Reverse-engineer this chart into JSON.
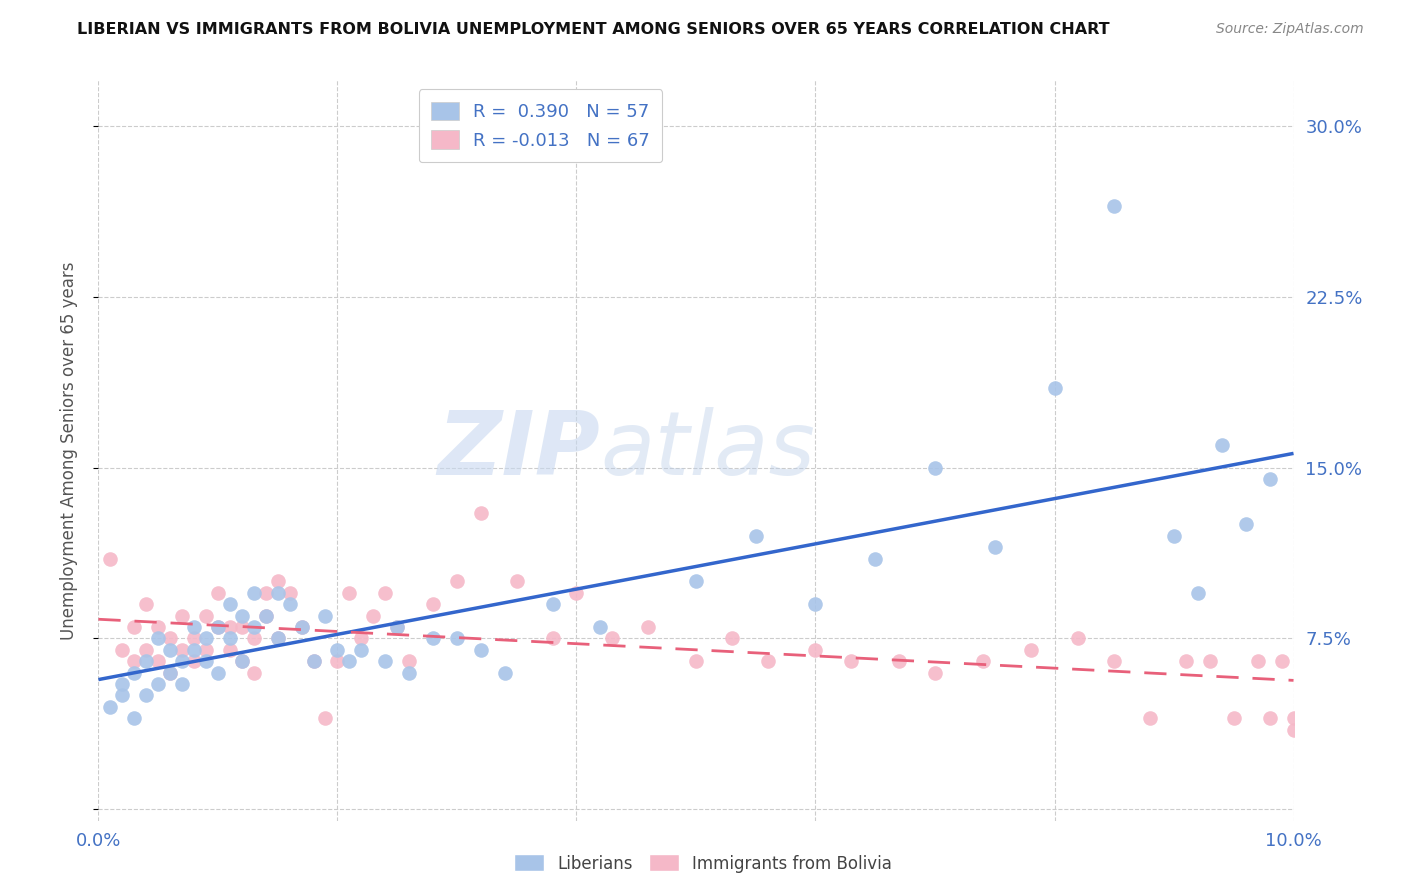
{
  "title": "LIBERIAN VS IMMIGRANTS FROM BOLIVIA UNEMPLOYMENT AMONG SENIORS OVER 65 YEARS CORRELATION CHART",
  "source": "Source: ZipAtlas.com",
  "ylabel": "Unemployment Among Seniors over 65 years",
  "xlim": [
    0.0,
    0.1
  ],
  "ylim": [
    -0.005,
    0.32
  ],
  "xticks": [
    0.0,
    0.02,
    0.04,
    0.06,
    0.08,
    0.1
  ],
  "xticklabels": [
    "0.0%",
    "",
    "",
    "",
    "",
    "10.0%"
  ],
  "yticks": [
    0.0,
    0.075,
    0.15,
    0.225,
    0.3
  ],
  "yticklabels": [
    "",
    "7.5%",
    "15.0%",
    "22.5%",
    "30.0%"
  ],
  "legend_r1": "R =  0.390",
  "legend_n1": "N = 57",
  "legend_r2": "R = -0.013",
  "legend_n2": "N = 67",
  "blue_color": "#a8c4e8",
  "pink_color": "#f5b8c8",
  "blue_line_color": "#3366cc",
  "pink_line_color": "#e8607a",
  "watermark_zip": "ZIP",
  "watermark_atlas": "atlas",
  "liberian_x": [
    0.001,
    0.002,
    0.002,
    0.003,
    0.003,
    0.004,
    0.004,
    0.005,
    0.005,
    0.006,
    0.006,
    0.007,
    0.007,
    0.008,
    0.008,
    0.009,
    0.009,
    0.01,
    0.01,
    0.011,
    0.011,
    0.012,
    0.012,
    0.013,
    0.013,
    0.014,
    0.015,
    0.015,
    0.016,
    0.017,
    0.018,
    0.019,
    0.02,
    0.021,
    0.022,
    0.024,
    0.025,
    0.026,
    0.028,
    0.03,
    0.032,
    0.034,
    0.038,
    0.042,
    0.05,
    0.055,
    0.06,
    0.065,
    0.07,
    0.075,
    0.08,
    0.085,
    0.09,
    0.092,
    0.094,
    0.096,
    0.098
  ],
  "liberian_y": [
    0.045,
    0.05,
    0.055,
    0.06,
    0.04,
    0.05,
    0.065,
    0.055,
    0.075,
    0.06,
    0.07,
    0.065,
    0.055,
    0.08,
    0.07,
    0.075,
    0.065,
    0.08,
    0.06,
    0.09,
    0.075,
    0.085,
    0.065,
    0.08,
    0.095,
    0.085,
    0.095,
    0.075,
    0.09,
    0.08,
    0.065,
    0.085,
    0.07,
    0.065,
    0.07,
    0.065,
    0.08,
    0.06,
    0.075,
    0.075,
    0.07,
    0.06,
    0.09,
    0.08,
    0.1,
    0.12,
    0.09,
    0.11,
    0.15,
    0.115,
    0.185,
    0.265,
    0.12,
    0.095,
    0.16,
    0.125,
    0.145
  ],
  "bolivia_x": [
    0.001,
    0.002,
    0.003,
    0.003,
    0.004,
    0.004,
    0.005,
    0.005,
    0.006,
    0.006,
    0.007,
    0.007,
    0.008,
    0.008,
    0.009,
    0.009,
    0.01,
    0.01,
    0.011,
    0.011,
    0.012,
    0.012,
    0.013,
    0.013,
    0.014,
    0.014,
    0.015,
    0.015,
    0.016,
    0.017,
    0.018,
    0.019,
    0.02,
    0.021,
    0.022,
    0.023,
    0.024,
    0.025,
    0.026,
    0.028,
    0.03,
    0.032,
    0.035,
    0.038,
    0.04,
    0.043,
    0.046,
    0.05,
    0.053,
    0.056,
    0.06,
    0.063,
    0.067,
    0.07,
    0.074,
    0.078,
    0.082,
    0.085,
    0.088,
    0.091,
    0.093,
    0.095,
    0.097,
    0.098,
    0.099,
    0.1,
    0.1
  ],
  "bolivia_y": [
    0.11,
    0.07,
    0.08,
    0.065,
    0.07,
    0.09,
    0.065,
    0.08,
    0.06,
    0.075,
    0.07,
    0.085,
    0.075,
    0.065,
    0.085,
    0.07,
    0.08,
    0.095,
    0.08,
    0.07,
    0.065,
    0.08,
    0.075,
    0.06,
    0.095,
    0.085,
    0.075,
    0.1,
    0.095,
    0.08,
    0.065,
    0.04,
    0.065,
    0.095,
    0.075,
    0.085,
    0.095,
    0.08,
    0.065,
    0.09,
    0.1,
    0.13,
    0.1,
    0.075,
    0.095,
    0.075,
    0.08,
    0.065,
    0.075,
    0.065,
    0.07,
    0.065,
    0.065,
    0.06,
    0.065,
    0.07,
    0.075,
    0.065,
    0.04,
    0.065,
    0.065,
    0.04,
    0.065,
    0.04,
    0.065,
    0.04,
    0.035
  ],
  "blue_intercept": 0.038,
  "blue_slope": 1.0,
  "pink_intercept": 0.068,
  "pink_slope": -0.02
}
